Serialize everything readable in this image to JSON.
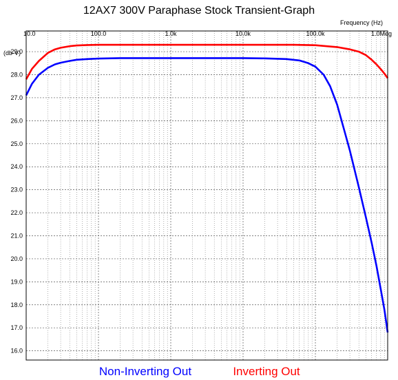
{
  "chart_data": {
    "type": "line",
    "title": "12AX7 300V Paraphase Stock Transient-Graph",
    "xlabel": "Frequency   (Hz)",
    "ylabel": "(db-V)",
    "x_scale": "log",
    "xlim": [
      10,
      1000000
    ],
    "ylim": [
      15.6,
      29.9
    ],
    "grid": true,
    "legend_position": "bottom",
    "x_tick_values": [
      10,
      100,
      1000,
      10000,
      100000,
      1000000
    ],
    "x_tick_labels": [
      "10.0",
      "100.0",
      "1.0k",
      "10.0k",
      "100.0k",
      "1.0Meg"
    ],
    "y_tick_values": [
      16,
      17,
      18,
      19,
      20,
      21,
      22,
      23,
      24,
      25,
      26,
      27,
      28,
      29
    ],
    "y_tick_labels": [
      "16.0",
      "17.0",
      "18.0",
      "19.0",
      "20.0",
      "21.0",
      "22.0",
      "23.0",
      "24.0",
      "25.0",
      "26.0",
      "27.0",
      "28.0",
      "29.0"
    ],
    "series": [
      {
        "name": "Non-Inverting Out",
        "color": "#0000ff",
        "x": [
          10,
          12,
          15,
          20,
          25,
          30,
          40,
          50,
          70,
          100,
          200,
          500,
          1000,
          5000,
          10000,
          20000,
          40000,
          60000,
          80000,
          100000,
          130000,
          160000,
          200000,
          250000,
          300000,
          400000,
          500000,
          600000,
          700000,
          800000,
          900000,
          1000000
        ],
        "y": [
          27.1,
          27.6,
          28.0,
          28.3,
          28.45,
          28.52,
          28.6,
          28.65,
          28.68,
          28.7,
          28.72,
          28.72,
          28.72,
          28.72,
          28.72,
          28.71,
          28.68,
          28.62,
          28.5,
          28.35,
          28.0,
          27.5,
          26.7,
          25.6,
          24.7,
          23.1,
          21.8,
          20.7,
          19.7,
          18.7,
          17.8,
          16.8
        ]
      },
      {
        "name": "Inverting Out",
        "color": "#ff0000",
        "x": [
          10,
          12,
          15,
          20,
          25,
          30,
          40,
          50,
          70,
          100,
          500,
          1000,
          10000,
          50000,
          100000,
          200000,
          300000,
          400000,
          500000,
          600000,
          700000,
          800000,
          900000,
          1000000
        ],
        "y": [
          27.8,
          28.25,
          28.6,
          28.95,
          29.1,
          29.17,
          29.24,
          29.27,
          29.29,
          29.3,
          29.3,
          29.3,
          29.3,
          29.3,
          29.28,
          29.2,
          29.1,
          29.0,
          28.85,
          28.65,
          28.45,
          28.25,
          28.05,
          27.85
        ]
      }
    ]
  }
}
